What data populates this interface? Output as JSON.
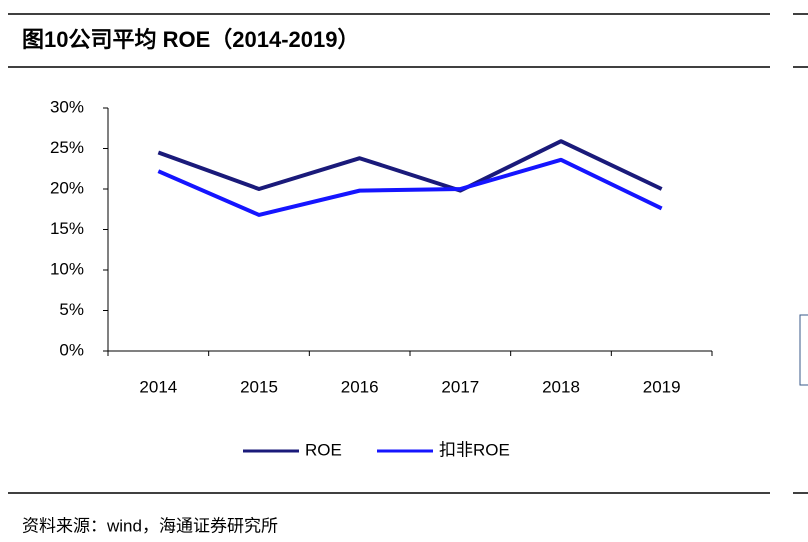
{
  "chart_data": {
    "type": "line",
    "title": "图10公司平均 ROE（2014-2019）",
    "categories": [
      "2014",
      "2015",
      "2016",
      "2017",
      "2018",
      "2019"
    ],
    "series": [
      {
        "name": "ROE",
        "color": "#1a1a7a",
        "values": [
          24.5,
          20.0,
          23.8,
          19.8,
          25.9,
          20.0
        ]
      },
      {
        "name": "扣非ROE",
        "color": "#1515ff",
        "values": [
          22.2,
          16.8,
          19.8,
          20.0,
          23.6,
          17.6
        ]
      }
    ],
    "ylim": [
      0,
      30
    ],
    "yticks": [
      {
        "value": 0,
        "label": "0%"
      },
      {
        "value": 5,
        "label": "5%"
      },
      {
        "value": 10,
        "label": "10%"
      },
      {
        "value": 15,
        "label": "15%"
      },
      {
        "value": 20,
        "label": "20%"
      },
      {
        "value": 25,
        "label": "25%"
      },
      {
        "value": 30,
        "label": "30%"
      }
    ],
    "grid": false,
    "legend": "bottom",
    "source": "资料来源：wind，海通证券研究所"
  }
}
